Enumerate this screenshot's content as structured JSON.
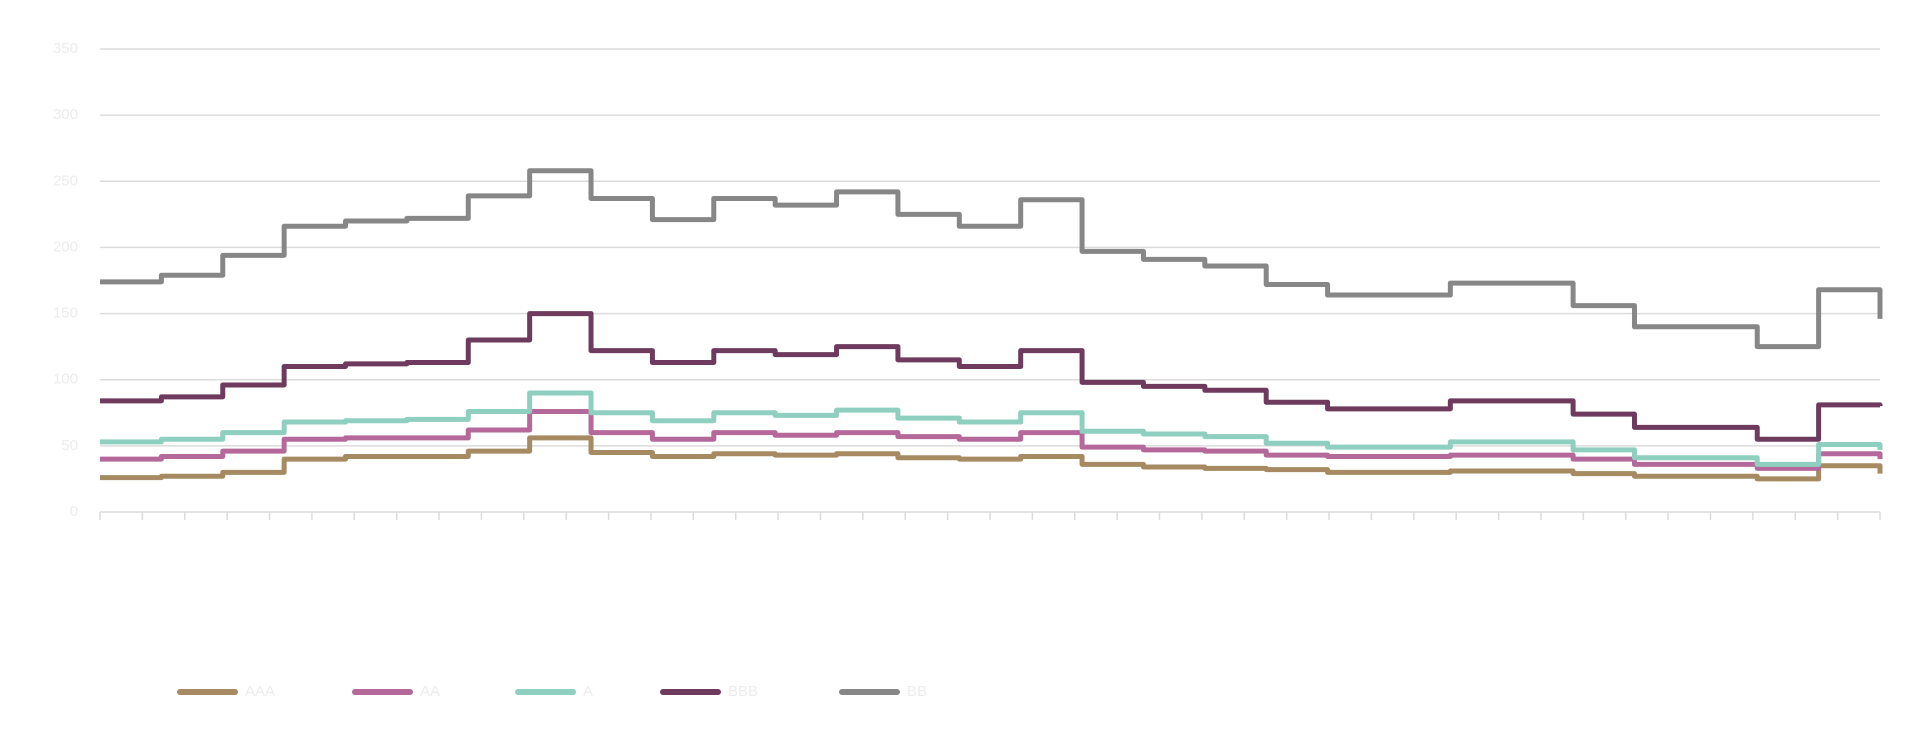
{
  "chart_data": {
    "type": "line",
    "ylim": [
      0,
      350
    ],
    "yticks": [
      0,
      50,
      100,
      150,
      200,
      250,
      300,
      350
    ],
    "grid": true,
    "legend": "bottom",
    "series": [
      {
        "name": "AAA",
        "color": "#a68a62",
        "values": [
          26,
          27,
          30,
          40,
          42,
          42,
          46,
          56,
          45,
          42,
          44,
          43,
          44,
          41,
          40,
          42,
          36,
          34,
          33,
          32,
          30,
          30,
          31,
          31,
          29,
          27,
          27,
          25,
          35,
          29
        ]
      },
      {
        "name": "AA",
        "color": "#b5699a",
        "values": [
          40,
          42,
          46,
          55,
          56,
          56,
          62,
          76,
          60,
          55,
          60,
          58,
          60,
          57,
          55,
          60,
          49,
          47,
          46,
          43,
          42,
          42,
          43,
          43,
          40,
          36,
          36,
          33,
          44,
          40
        ]
      },
      {
        "name": "A",
        "color": "#8ecfc0",
        "values": [
          53,
          55,
          60,
          68,
          69,
          70,
          76,
          90,
          75,
          69,
          75,
          73,
          77,
          71,
          68,
          75,
          61,
          59,
          57,
          52,
          49,
          49,
          53,
          53,
          47,
          41,
          41,
          36,
          51,
          47
        ]
      },
      {
        "name": "BBB",
        "color": "#6e3b5e",
        "values": [
          84,
          87,
          96,
          110,
          112,
          113,
          130,
          150,
          122,
          113,
          122,
          119,
          125,
          115,
          110,
          122,
          98,
          95,
          92,
          83,
          78,
          78,
          84,
          84,
          74,
          64,
          64,
          55,
          81,
          80
        ]
      },
      {
        "name": "BB",
        "color": "#878787",
        "values": [
          174,
          179,
          194,
          216,
          220,
          222,
          239,
          258,
          237,
          221,
          237,
          232,
          242,
          225,
          216,
          236,
          197,
          191,
          186,
          172,
          164,
          164,
          173,
          173,
          156,
          140,
          140,
          125,
          168,
          146
        ]
      }
    ]
  }
}
